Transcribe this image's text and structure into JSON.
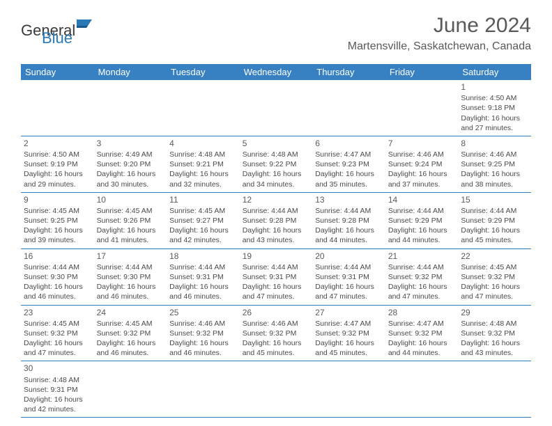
{
  "brand": {
    "name1": "General",
    "name2": "Blue"
  },
  "title": "June 2024",
  "location": "Martensville, Saskatchewan, Canada",
  "colors": {
    "headerBg": "#3781c2",
    "headerText": "#ffffff",
    "border": "#2a7ab8",
    "text": "#4a4a4a",
    "titleText": "#595959"
  },
  "dayHeaders": [
    "Sunday",
    "Monday",
    "Tuesday",
    "Wednesday",
    "Thursday",
    "Friday",
    "Saturday"
  ],
  "weeks": [
    [
      null,
      null,
      null,
      null,
      null,
      null,
      {
        "n": "1",
        "sr": "4:50 AM",
        "ss": "9:18 PM",
        "dh": "16",
        "dm": "27"
      }
    ],
    [
      {
        "n": "2",
        "sr": "4:50 AM",
        "ss": "9:19 PM",
        "dh": "16",
        "dm": "29"
      },
      {
        "n": "3",
        "sr": "4:49 AM",
        "ss": "9:20 PM",
        "dh": "16",
        "dm": "30"
      },
      {
        "n": "4",
        "sr": "4:48 AM",
        "ss": "9:21 PM",
        "dh": "16",
        "dm": "32"
      },
      {
        "n": "5",
        "sr": "4:48 AM",
        "ss": "9:22 PM",
        "dh": "16",
        "dm": "34"
      },
      {
        "n": "6",
        "sr": "4:47 AM",
        "ss": "9:23 PM",
        "dh": "16",
        "dm": "35"
      },
      {
        "n": "7",
        "sr": "4:46 AM",
        "ss": "9:24 PM",
        "dh": "16",
        "dm": "37"
      },
      {
        "n": "8",
        "sr": "4:46 AM",
        "ss": "9:25 PM",
        "dh": "16",
        "dm": "38"
      }
    ],
    [
      {
        "n": "9",
        "sr": "4:45 AM",
        "ss": "9:25 PM",
        "dh": "16",
        "dm": "39"
      },
      {
        "n": "10",
        "sr": "4:45 AM",
        "ss": "9:26 PM",
        "dh": "16",
        "dm": "41"
      },
      {
        "n": "11",
        "sr": "4:45 AM",
        "ss": "9:27 PM",
        "dh": "16",
        "dm": "42"
      },
      {
        "n": "12",
        "sr": "4:44 AM",
        "ss": "9:28 PM",
        "dh": "16",
        "dm": "43"
      },
      {
        "n": "13",
        "sr": "4:44 AM",
        "ss": "9:28 PM",
        "dh": "16",
        "dm": "44"
      },
      {
        "n": "14",
        "sr": "4:44 AM",
        "ss": "9:29 PM",
        "dh": "16",
        "dm": "44"
      },
      {
        "n": "15",
        "sr": "4:44 AM",
        "ss": "9:29 PM",
        "dh": "16",
        "dm": "45"
      }
    ],
    [
      {
        "n": "16",
        "sr": "4:44 AM",
        "ss": "9:30 PM",
        "dh": "16",
        "dm": "46"
      },
      {
        "n": "17",
        "sr": "4:44 AM",
        "ss": "9:30 PM",
        "dh": "16",
        "dm": "46"
      },
      {
        "n": "18",
        "sr": "4:44 AM",
        "ss": "9:31 PM",
        "dh": "16",
        "dm": "46"
      },
      {
        "n": "19",
        "sr": "4:44 AM",
        "ss": "9:31 PM",
        "dh": "16",
        "dm": "47"
      },
      {
        "n": "20",
        "sr": "4:44 AM",
        "ss": "9:31 PM",
        "dh": "16",
        "dm": "47"
      },
      {
        "n": "21",
        "sr": "4:44 AM",
        "ss": "9:32 PM",
        "dh": "16",
        "dm": "47"
      },
      {
        "n": "22",
        "sr": "4:45 AM",
        "ss": "9:32 PM",
        "dh": "16",
        "dm": "47"
      }
    ],
    [
      {
        "n": "23",
        "sr": "4:45 AM",
        "ss": "9:32 PM",
        "dh": "16",
        "dm": "47"
      },
      {
        "n": "24",
        "sr": "4:45 AM",
        "ss": "9:32 PM",
        "dh": "16",
        "dm": "46"
      },
      {
        "n": "25",
        "sr": "4:46 AM",
        "ss": "9:32 PM",
        "dh": "16",
        "dm": "46"
      },
      {
        "n": "26",
        "sr": "4:46 AM",
        "ss": "9:32 PM",
        "dh": "16",
        "dm": "45"
      },
      {
        "n": "27",
        "sr": "4:47 AM",
        "ss": "9:32 PM",
        "dh": "16",
        "dm": "45"
      },
      {
        "n": "28",
        "sr": "4:47 AM",
        "ss": "9:32 PM",
        "dh": "16",
        "dm": "44"
      },
      {
        "n": "29",
        "sr": "4:48 AM",
        "ss": "9:32 PM",
        "dh": "16",
        "dm": "43"
      }
    ],
    [
      {
        "n": "30",
        "sr": "4:48 AM",
        "ss": "9:31 PM",
        "dh": "16",
        "dm": "42"
      },
      null,
      null,
      null,
      null,
      null,
      null
    ]
  ],
  "labels": {
    "sunrise": "Sunrise:",
    "sunset": "Sunset:",
    "daylight1": "Daylight:",
    "daylight2": "hours",
    "daylight3": "and",
    "daylight4": "minutes."
  }
}
